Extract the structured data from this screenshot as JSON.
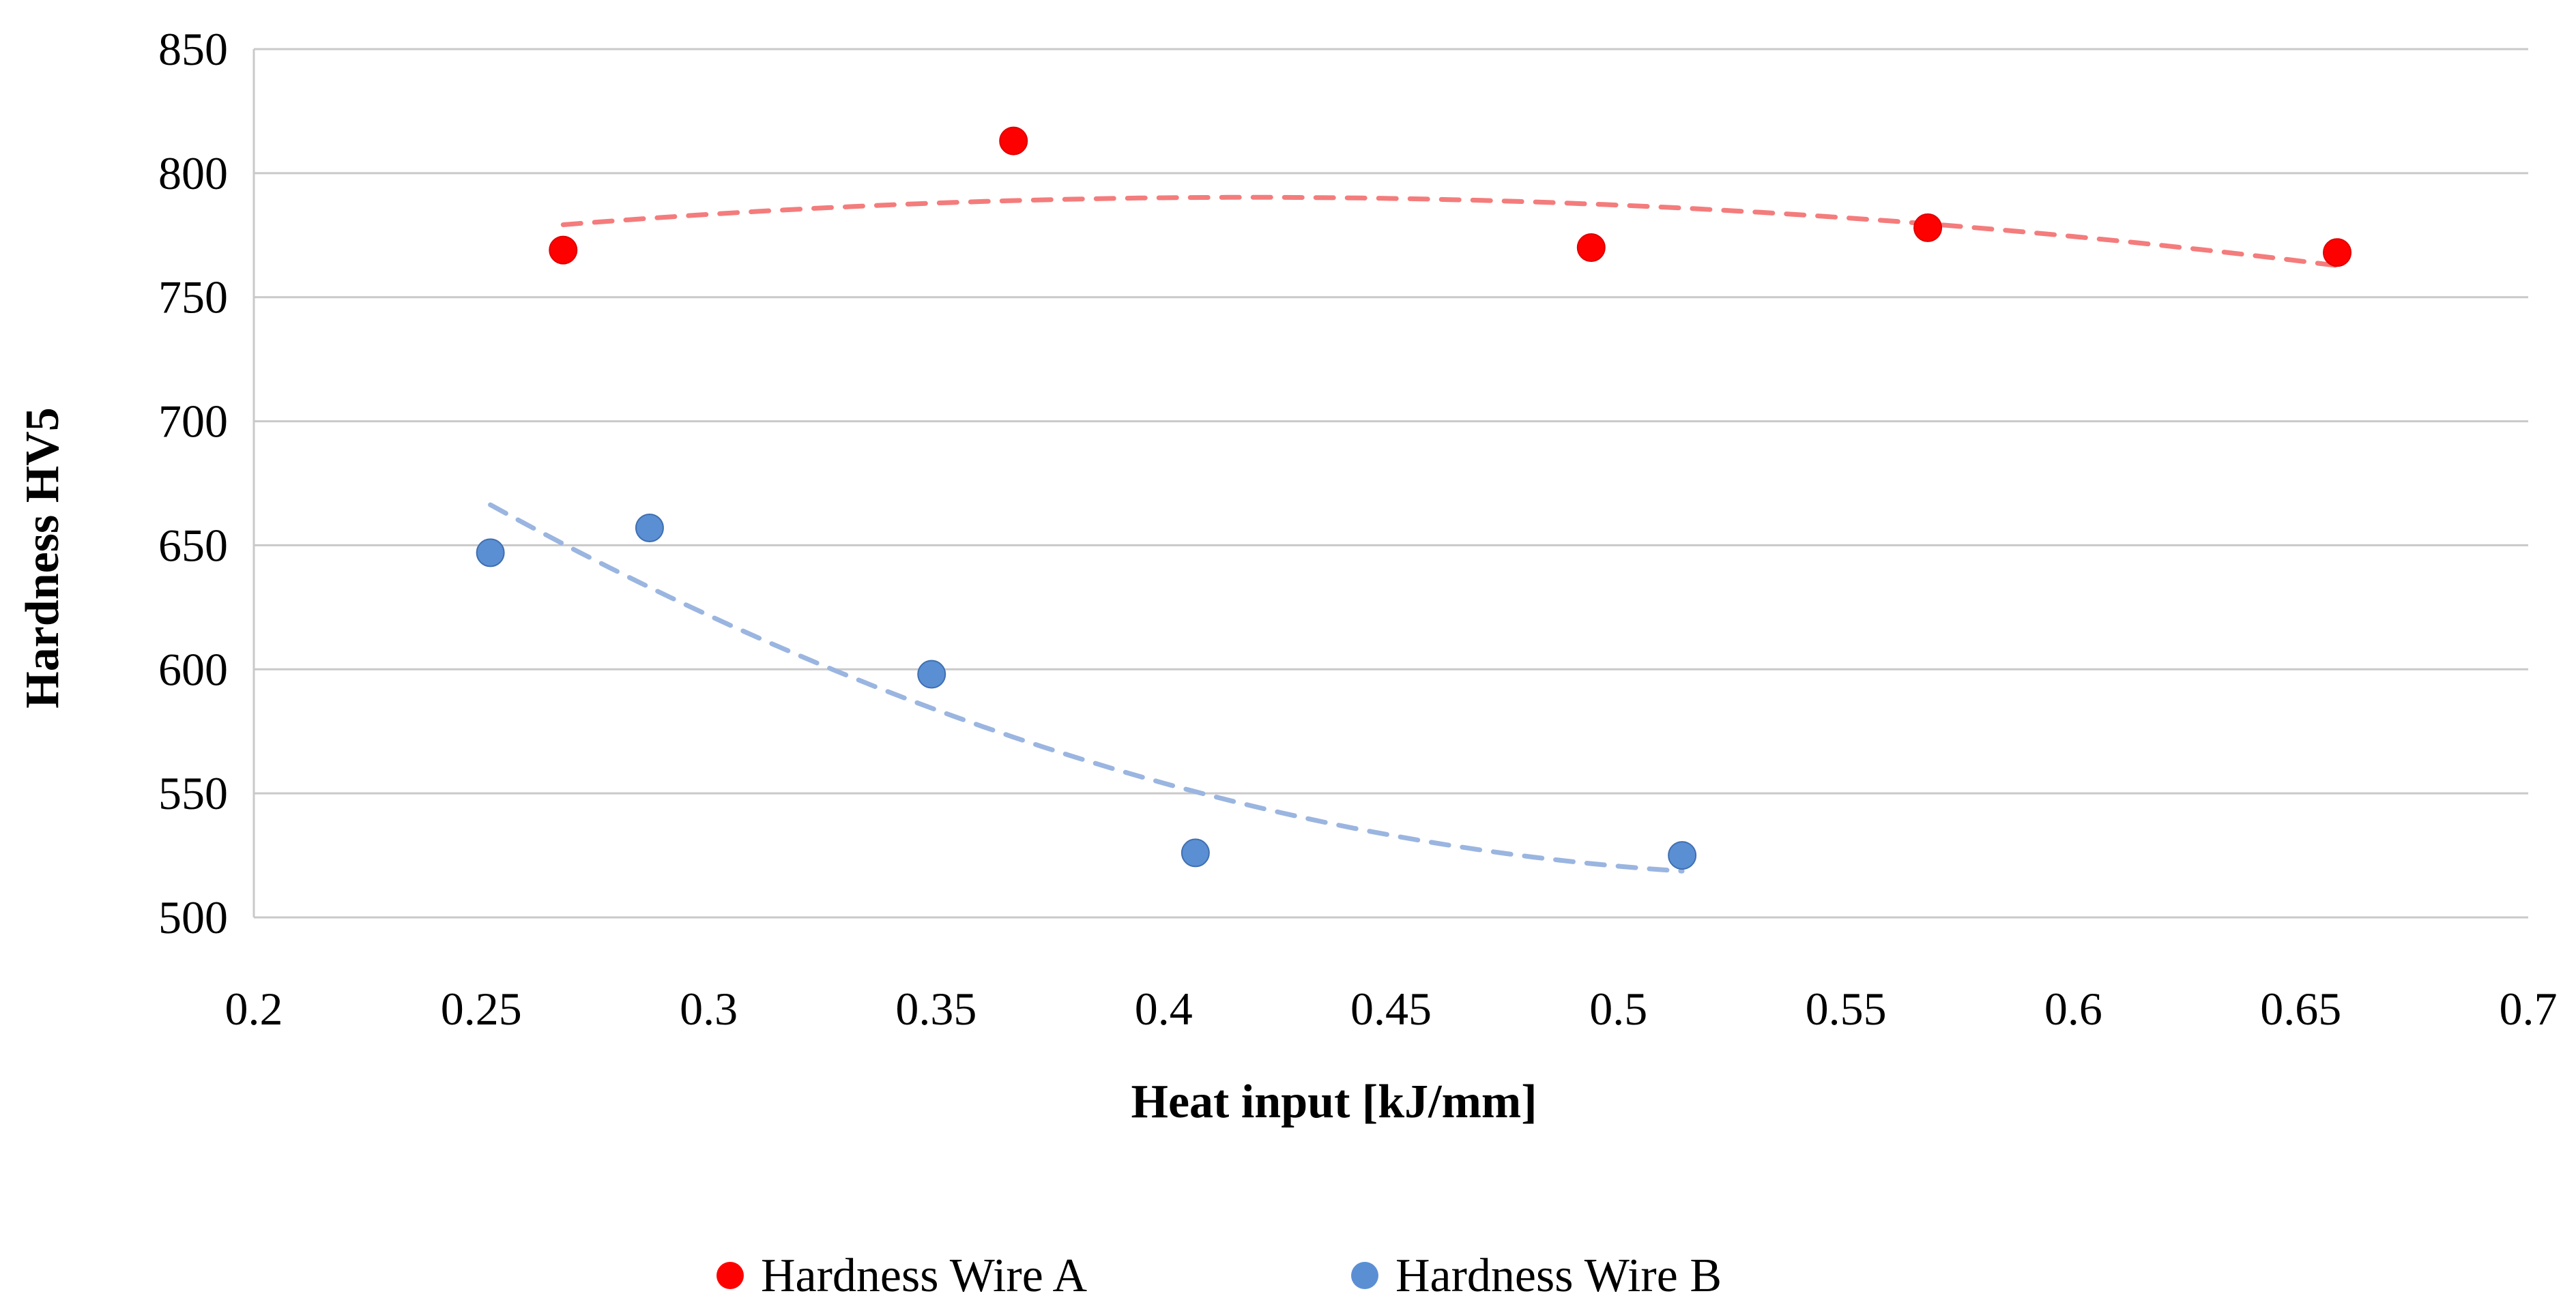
{
  "chart_data": {
    "type": "scatter",
    "title": "",
    "xlabel": "Heat input [kJ/mm]",
    "ylabel": "Hardness HV5",
    "xlim": [
      0.2,
      0.7
    ],
    "ylim": [
      500,
      850
    ],
    "xticks": [
      0.2,
      0.25,
      0.3,
      0.35,
      0.4,
      0.45,
      0.5,
      0.55,
      0.6,
      0.65,
      0.7
    ],
    "yticks": [
      500,
      550,
      600,
      650,
      700,
      750,
      800,
      850
    ],
    "xtick_labels": [
      "0.2",
      "0.25",
      "0.3",
      "0.35",
      "0.4",
      "0.45",
      "0.5",
      "0.55",
      "0.6",
      "0.65",
      "0.7"
    ],
    "ytick_labels": [
      "500",
      "550",
      "600",
      "650",
      "700",
      "750",
      "800",
      "850"
    ],
    "grid": "horizontal",
    "legend_position": "bottom",
    "series": [
      {
        "name": "Hardness Wire A",
        "color": "#ff0000",
        "trend_color": "#f47c7c",
        "x": [
          0.268,
          0.367,
          0.494,
          0.568,
          0.658
        ],
        "y": [
          769,
          813,
          770,
          778,
          768
        ],
        "trendline": "polynomial"
      },
      {
        "name": "Hardness Wire B",
        "color": "#5b8fd4",
        "trend_color": "#9ab5e0",
        "x": [
          0.252,
          0.287,
          0.349,
          0.407,
          0.514
        ],
        "y": [
          647,
          657,
          598,
          526,
          525
        ],
        "trendline": "polynomial"
      }
    ]
  }
}
